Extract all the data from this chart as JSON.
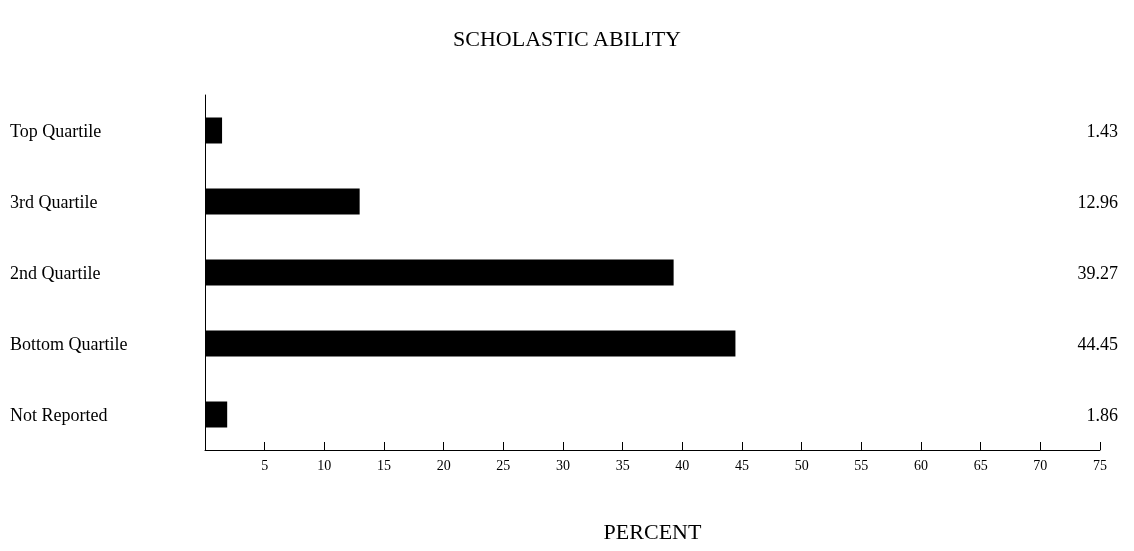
{
  "chart_data": {
    "type": "bar",
    "orientation": "horizontal",
    "title": "SCHOLASTIC ABILITY",
    "xlabel": "PERCENT",
    "categories": [
      "Top Quartile",
      "3rd Quartile",
      "2nd Quartile",
      "Bottom Quartile",
      "Not Reported"
    ],
    "values": [
      1.43,
      12.96,
      39.27,
      44.45,
      1.86
    ],
    "color": "#000000",
    "xlim": [
      0,
      75
    ],
    "xticks": [
      {
        "value": 0,
        "label": null
      },
      5,
      10,
      15,
      20,
      25,
      30,
      35,
      40,
      45,
      50,
      55,
      60,
      65,
      70,
      75
    ],
    "data_labels": true,
    "grid": false
  }
}
